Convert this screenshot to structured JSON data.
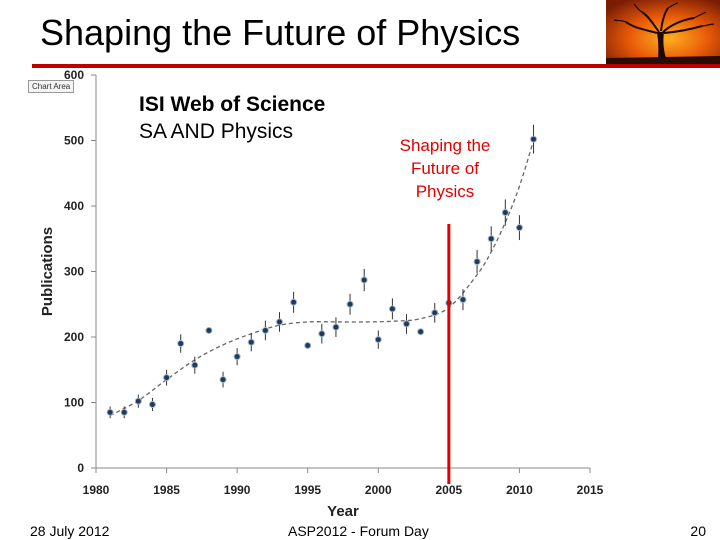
{
  "slide": {
    "title": "Shaping the Future of Physics",
    "footer_date": "28 July 2012",
    "footer_event": "ASP2012 - Forum Day",
    "page_number": "20",
    "accent_color": "#c00000"
  },
  "chart_area_tag": "Chart Area",
  "inset_title": {
    "line1": "ISI Web of Science",
    "line2": "SA AND Physics"
  },
  "annotation": {
    "lines": [
      "Shaping the",
      "Future of",
      "Physics"
    ],
    "marker_year": 2005,
    "color": "#e00000"
  },
  "chart_data": {
    "type": "scatter",
    "title": "",
    "xlabel": "Year",
    "ylabel": "Publications",
    "xlim": [
      1980,
      2015
    ],
    "ylim": [
      0,
      600
    ],
    "xticks": [
      1980,
      1985,
      1990,
      1995,
      2000,
      2005,
      2010,
      2015
    ],
    "yticks": [
      0,
      100,
      200,
      300,
      400,
      500,
      600
    ],
    "grid": false,
    "legend": "none",
    "point_color": "#1f3b5c",
    "points": [
      {
        "x": 1981,
        "y": 85,
        "err": 9
      },
      {
        "x": 1982,
        "y": 85,
        "err": 9
      },
      {
        "x": 1983,
        "y": 102,
        "err": 10
      },
      {
        "x": 1984,
        "y": 97,
        "err": 10
      },
      {
        "x": 1985,
        "y": 138,
        "err": 12
      },
      {
        "x": 1986,
        "y": 190,
        "err": 14
      },
      {
        "x": 1987,
        "y": 157,
        "err": 13
      },
      {
        "x": 1988,
        "y": 210,
        "err": 5
      },
      {
        "x": 1989,
        "y": 135,
        "err": 12
      },
      {
        "x": 1990,
        "y": 170,
        "err": 13
      },
      {
        "x": 1991,
        "y": 192,
        "err": 14
      },
      {
        "x": 1992,
        "y": 210,
        "err": 15
      },
      {
        "x": 1993,
        "y": 223,
        "err": 15
      },
      {
        "x": 1994,
        "y": 253,
        "err": 16
      },
      {
        "x": 1995,
        "y": 187,
        "err": 5
      },
      {
        "x": 1996,
        "y": 205,
        "err": 15
      },
      {
        "x": 1997,
        "y": 215,
        "err": 15
      },
      {
        "x": 1998,
        "y": 250,
        "err": 16
      },
      {
        "x": 1999,
        "y": 287,
        "err": 17
      },
      {
        "x": 2000,
        "y": 196,
        "err": 14
      },
      {
        "x": 2001,
        "y": 243,
        "err": 16
      },
      {
        "x": 2002,
        "y": 220,
        "err": 15
      },
      {
        "x": 2003,
        "y": 208,
        "err": 5
      },
      {
        "x": 2004,
        "y": 237,
        "err": 15
      },
      {
        "x": 2005,
        "y": 252,
        "err": 16
      },
      {
        "x": 2006,
        "y": 257,
        "err": 16
      },
      {
        "x": 2007,
        "y": 315,
        "err": 18
      },
      {
        "x": 2008,
        "y": 350,
        "err": 19
      },
      {
        "x": 2009,
        "y": 390,
        "err": 20
      },
      {
        "x": 2010,
        "y": 367,
        "err": 19
      },
      {
        "x": 2011,
        "y": 502,
        "err": 22
      }
    ],
    "fit_line": {
      "style": "dashed",
      "x": [
        1981,
        1983,
        1985,
        1987,
        1989,
        1991,
        1993,
        1995,
        1997,
        1999,
        2001,
        2003,
        2005,
        2007,
        2008,
        2009,
        2010,
        2011
      ],
      "y": [
        80,
        103,
        135,
        165,
        188,
        205,
        218,
        223,
        223,
        223,
        224,
        228,
        245,
        295,
        330,
        375,
        430,
        500
      ]
    }
  }
}
